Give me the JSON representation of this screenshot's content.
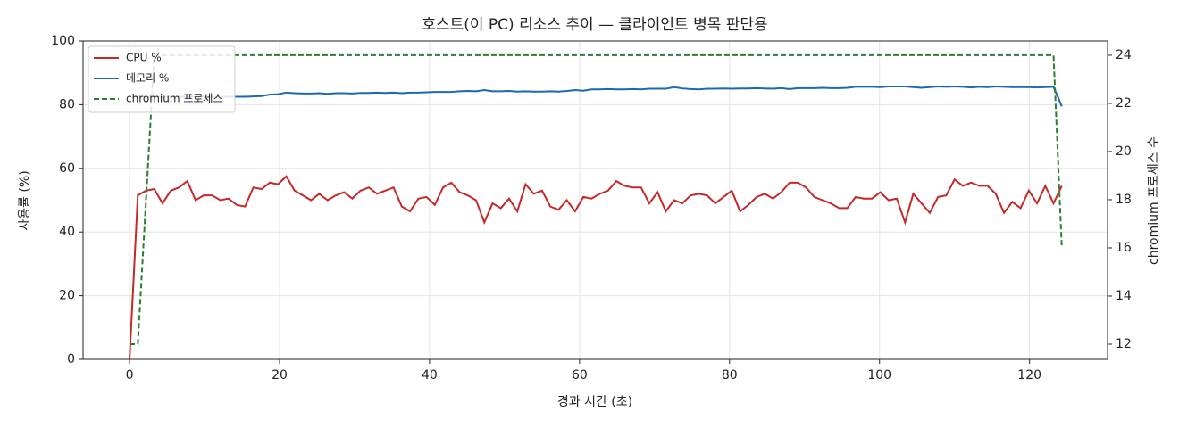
{
  "chart_data": {
    "type": "line",
    "title": "호스트(이 PC) 리소스 추이 — 클라이언트 병목 판단용",
    "xlabel": "경과 시간 (초)",
    "ylabel": "사용률 (%)",
    "y2label": "chromium 프로세스 수",
    "x": [
      0,
      1.1,
      2.2,
      3.3,
      4.4,
      5.5,
      6.6,
      7.7,
      8.8,
      9.9,
      11,
      12.1,
      13.2,
      14.3,
      15.4,
      16.5,
      17.6,
      18.7,
      19.8,
      20.9,
      22,
      23.1,
      24.2,
      25.3,
      26.4,
      27.5,
      28.6,
      29.7,
      30.8,
      31.9,
      33,
      34.1,
      35.2,
      36.3,
      37.4,
      38.5,
      39.6,
      40.7,
      41.8,
      42.9,
      44,
      45.1,
      46.2,
      47.3,
      48.4,
      49.5,
      50.6,
      51.7,
      52.8,
      53.9,
      55,
      56.1,
      57.2,
      58.3,
      59.4,
      60.5,
      61.6,
      62.7,
      63.8,
      64.9,
      66,
      67.1,
      68.2,
      69.3,
      70.4,
      71.5,
      72.6,
      73.7,
      74.8,
      75.9,
      77,
      78.1,
      79.2,
      80.3,
      81.4,
      82.5,
      83.6,
      84.7,
      85.8,
      86.9,
      88,
      89.1,
      90.2,
      91.3,
      92.4,
      93.5,
      94.6,
      95.7,
      96.8,
      97.9,
      99,
      100.1,
      101.2,
      102.3,
      103.4,
      104.5,
      105.6,
      106.7,
      107.8,
      108.9,
      110,
      111.1,
      112.2,
      113.3,
      114.4,
      115.5,
      116.6,
      117.7,
      118.8,
      119.9,
      121,
      122.1,
      123.2,
      124.3
    ],
    "series": [
      {
        "name": "CPU %",
        "color": "#c62828",
        "values": [
          0,
          51.5,
          53,
          53.5,
          49,
          53,
          54,
          56,
          50,
          51.5,
          51.5,
          50,
          50.5,
          48.5,
          48,
          54,
          53.5,
          55.5,
          55,
          57.5,
          53,
          51.5,
          50,
          52,
          50,
          51.5,
          52.5,
          50.5,
          53,
          54,
          52,
          53,
          54,
          48,
          46.5,
          50.5,
          51,
          48.5,
          54,
          55.5,
          52.5,
          51.5,
          50,
          43,
          49,
          47.5,
          50.5,
          46.5,
          55,
          52,
          53,
          48,
          47,
          50,
          46.5,
          51,
          50.5,
          52,
          53,
          56,
          54.5,
          54,
          54,
          49,
          52.5,
          46.5,
          50,
          49,
          51.5,
          52,
          51.5,
          49,
          51,
          53,
          46.5,
          48.5,
          51,
          52,
          50.5,
          52.5,
          55.5,
          55.5,
          54,
          51,
          50,
          49,
          47.5,
          47.5,
          51,
          50.5,
          50.5,
          52.5,
          50,
          50.5,
          43,
          52,
          49,
          46,
          51,
          51.5,
          56.5,
          54.5,
          55.5,
          54.5,
          54.5,
          52,
          46,
          49.5,
          47.5,
          53,
          49,
          54.5,
          49,
          54.5
        ]
      },
      {
        "name": "메모리 %",
        "color": "#1f67b0",
        "values": [
          82.5,
          82.5,
          82.5,
          82.5,
          82.5,
          82.5,
          82.5,
          82.5,
          82.5,
          82.5,
          82.5,
          82.5,
          82.5,
          82.5,
          82.5,
          82.6,
          82.7,
          83.2,
          83.3,
          83.8,
          83.6,
          83.5,
          83.5,
          83.6,
          83.4,
          83.6,
          83.6,
          83.5,
          83.7,
          83.7,
          83.8,
          83.7,
          83.8,
          83.6,
          83.8,
          83.8,
          83.9,
          84,
          84,
          84,
          84.2,
          84.3,
          84.2,
          84.6,
          84.2,
          84.2,
          84.3,
          84.1,
          84.2,
          84.1,
          84.1,
          84.2,
          84.1,
          84.3,
          84.6,
          84.4,
          84.8,
          84.8,
          84.9,
          84.8,
          84.8,
          84.9,
          84.8,
          85,
          85,
          85,
          85.5,
          85.1,
          84.9,
          84.8,
          85,
          85,
          85.1,
          85,
          85.1,
          85.1,
          85.2,
          85.1,
          85,
          85.2,
          84.9,
          85.2,
          85.2,
          85.2,
          85.3,
          85.2,
          85.2,
          85.3,
          85.6,
          85.6,
          85.6,
          85.5,
          85.7,
          85.7,
          85.7,
          85.5,
          85.3,
          85.5,
          85.7,
          85.6,
          85.7,
          85.6,
          85.4,
          85.6,
          85.5,
          85.7,
          85.6,
          85.5,
          85.5,
          85.5,
          85.4,
          85.5,
          85.6,
          79.5
        ]
      },
      {
        "name": "chromium 프로세스",
        "color": "#2e7d32",
        "dashed": true,
        "axis": "y2",
        "values": [
          12,
          12,
          18,
          24,
          24,
          24,
          24,
          24,
          24,
          24,
          24,
          24,
          24,
          24,
          24,
          24,
          24,
          24,
          24,
          24,
          24,
          24,
          24,
          24,
          24,
          24,
          24,
          24,
          24,
          24,
          24,
          24,
          24,
          24,
          24,
          24,
          24,
          24,
          24,
          24,
          24,
          24,
          24,
          24,
          24,
          24,
          24,
          24,
          24,
          24,
          24,
          24,
          24,
          24,
          24,
          24,
          24,
          24,
          24,
          24,
          24,
          24,
          24,
          24,
          24,
          24,
          24,
          24,
          24,
          24,
          24,
          24,
          24,
          24,
          24,
          24,
          24,
          24,
          24,
          24,
          24,
          24,
          24,
          24,
          24,
          24,
          24,
          24,
          24,
          24,
          24,
          24,
          24,
          24,
          24,
          24,
          24,
          24,
          24,
          24,
          24,
          24,
          24,
          24,
          24,
          24,
          24,
          24,
          24,
          24,
          24,
          24,
          24,
          16
        ]
      }
    ],
    "xlim": [
      -6.2,
      130.4
    ],
    "xticks": [
      0,
      20,
      40,
      60,
      80,
      100,
      120
    ],
    "ylim": [
      0,
      100
    ],
    "yticks": [
      0,
      20,
      40,
      60,
      80,
      100
    ],
    "y2lim": [
      11.37,
      24.59
    ],
    "y2ticks": [
      12,
      14,
      16,
      18,
      20,
      22,
      24
    ],
    "grid": true,
    "legend": "upper left"
  }
}
